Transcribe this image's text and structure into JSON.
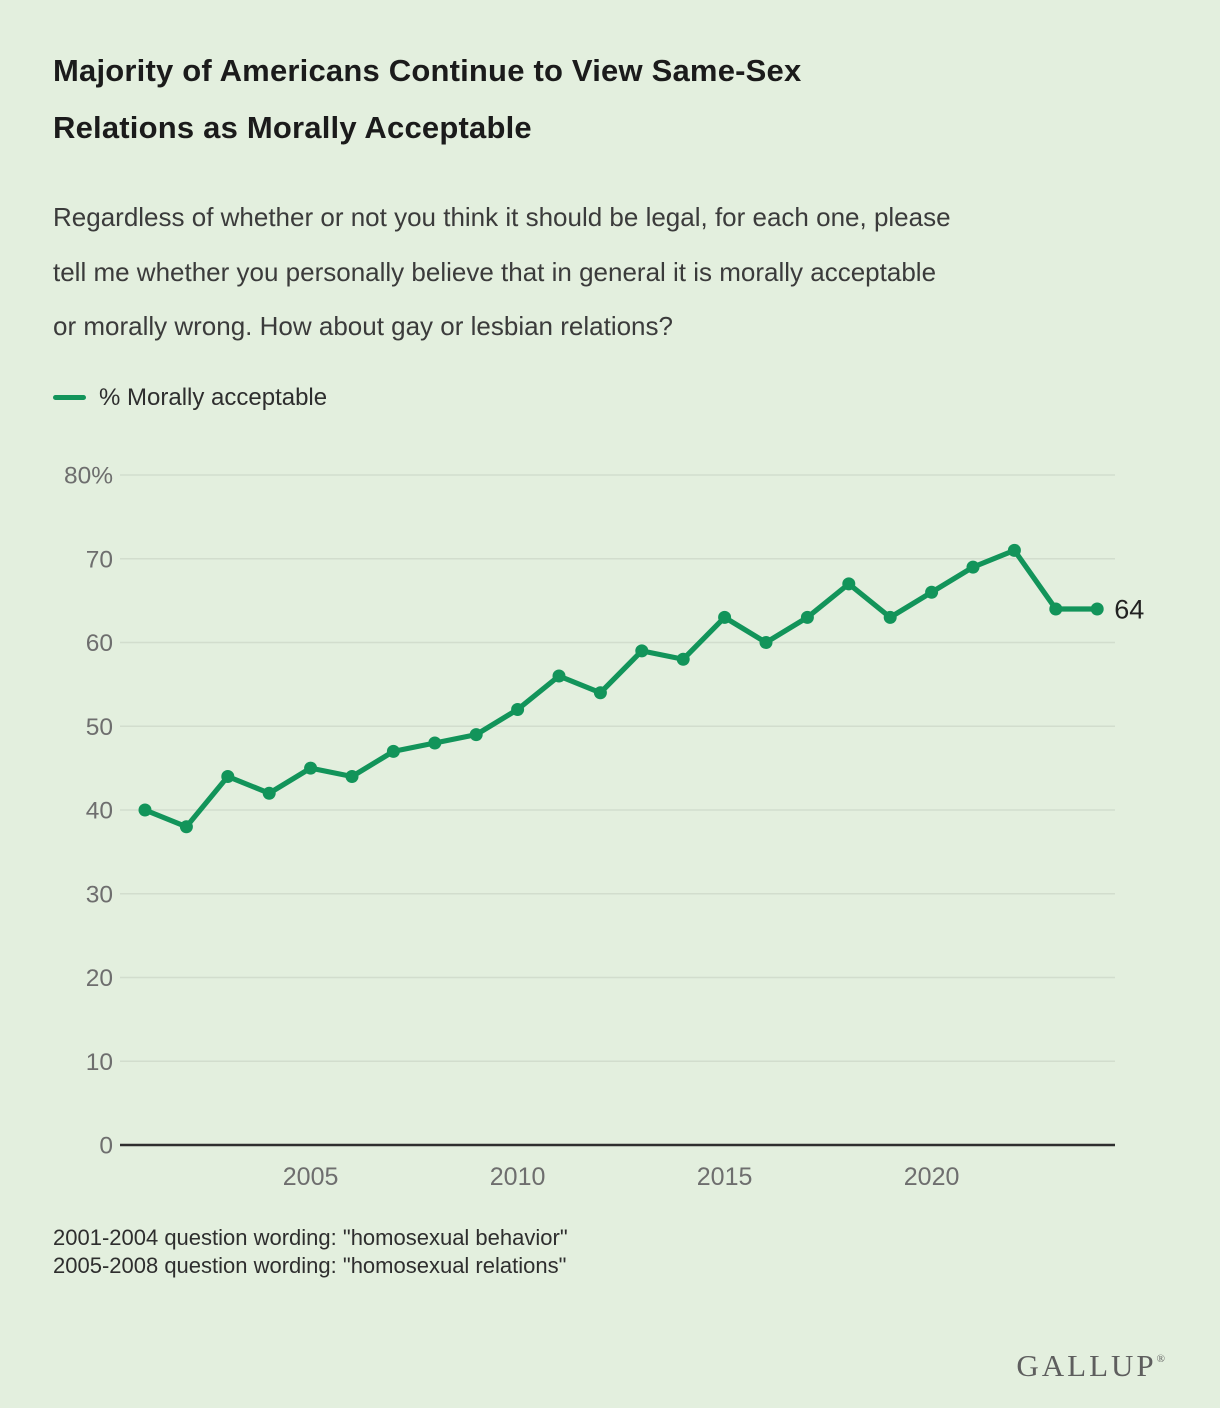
{
  "title": {
    "full": "Majority of Americans Continue to View Same-Sex Relations as Morally Acceptable",
    "lines": [
      "Majority of Americans Continue to View Same-Sex",
      "Relations as Morally Acceptable"
    ]
  },
  "subtitle": {
    "full": "Regardless of whether or not you think it should be legal, for each one, please tell me whether you personally believe that in general it is morally acceptable or morally wrong. How about gay or lesbian relations?",
    "lines": [
      "Regardless of whether or not you think it should be legal, for each one, please",
      "tell me whether you personally believe that in general it is morally acceptable",
      "or morally wrong. How about gay or lesbian relations?"
    ]
  },
  "legend": {
    "label": "% Morally acceptable"
  },
  "colors": {
    "background": "#e3efde",
    "line": "#12945a",
    "grid": "#d2ddcd",
    "axis": "#2e2e2e",
    "axis_label": "#6e6e6e",
    "title": "#1b1b1b",
    "subtitle_text": "#3b3b3b",
    "end_label": "#222222"
  },
  "chart_data": {
    "type": "line",
    "title": "% Morally acceptable",
    "x": [
      2001,
      2002,
      2003,
      2004,
      2005,
      2006,
      2007,
      2008,
      2009,
      2010,
      2011,
      2012,
      2013,
      2014,
      2015,
      2016,
      2017,
      2018,
      2019,
      2020,
      2021,
      2022,
      2023,
      2024
    ],
    "series": [
      {
        "name": "% Morally acceptable",
        "values": [
          40,
          38,
          44,
          42,
          45,
          44,
          47,
          48,
          49,
          52,
          56,
          54,
          59,
          58,
          63,
          60,
          63,
          67,
          63,
          66,
          69,
          71,
          64,
          64
        ]
      }
    ],
    "ylim": [
      0,
      80
    ],
    "yticks": [
      0,
      10,
      20,
      30,
      40,
      50,
      60,
      70,
      80
    ],
    "ytick_labels": [
      "0",
      "10",
      "20",
      "30",
      "40",
      "50",
      "60",
      "70",
      "80%"
    ],
    "xticks": [
      2005,
      2010,
      2015,
      2020
    ],
    "grid": "horizontal",
    "legend_position": "top-left",
    "end_label": "64"
  },
  "footnotes": [
    "2001-2004 question wording: \"homosexual behavior\"",
    "2005-2008 question wording: \"homosexual relations\""
  ],
  "branding": {
    "logo": "GALLUP",
    "registered_mark": "®"
  }
}
